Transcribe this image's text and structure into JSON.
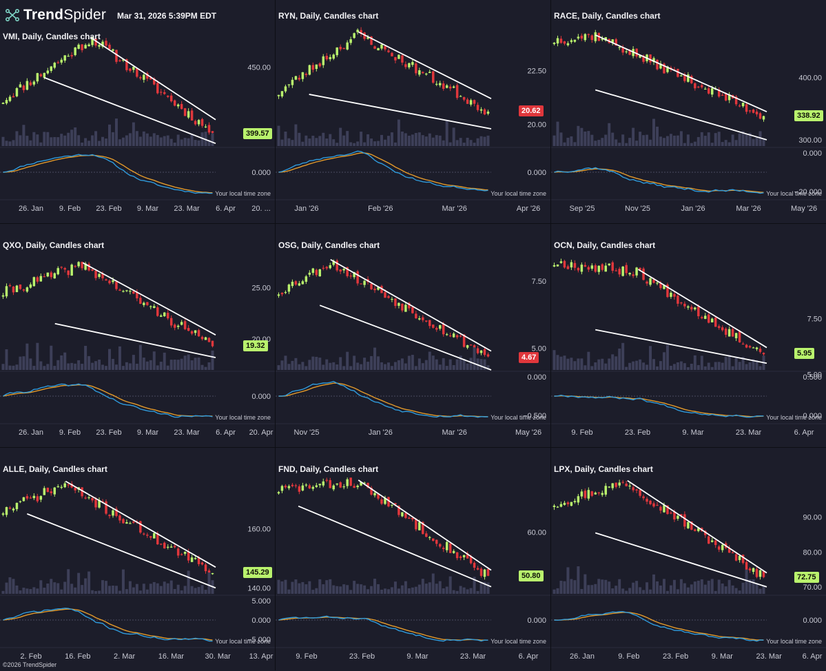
{
  "header": {
    "brand_bold": "Trend",
    "brand_light": "Spider",
    "timestamp": "Mar 31, 2026 5:39PM EDT",
    "copyright": "©2026 TrendSpider",
    "logo_icon": "trendspider-logo-icon"
  },
  "colors": {
    "background": "#1c1d2a",
    "bull": "#b9f26d",
    "bear": "#e0373c",
    "trendline": "#ffffff",
    "volume": "#3d3f58",
    "macd": "#2f9bdc",
    "signal": "#e39a2b",
    "badge_up": "#b9f26d",
    "badge_down": "#e0373c"
  },
  "time_zone_label": "Your local time zone",
  "chart_data": [
    {
      "type": "candlestick",
      "title": "VMI, Daily, Candles chart",
      "ticker": "VMI",
      "last_price": "399.57",
      "badge": "up",
      "price_ticks": [
        "450.00"
      ],
      "price_range": [
        390,
        480
      ],
      "date_ticks": [
        "26. Jan",
        "9. Feb",
        "23. Feb",
        "9. Mar",
        "23. Mar",
        "6. Apr",
        "20. ..."
      ],
      "osc_ticks": [
        "0.000"
      ],
      "trend": {
        "start": 425,
        "peak": 472,
        "end": 400,
        "peak_pos": 0.42
      },
      "upper_line": [
        [
          0.42,
          472
        ],
        [
          1.0,
          410
        ]
      ],
      "lower_line": [
        [
          0.2,
          442
        ],
        [
          1.0,
          392
        ]
      ],
      "seed": 11
    },
    {
      "type": "candlestick",
      "title": "RYN, Daily, Candles chart",
      "ticker": "RYN",
      "last_price": "20.62",
      "badge": "down",
      "price_ticks": [
        "22.50",
        "20.00"
      ],
      "price_range": [
        19.0,
        24.5
      ],
      "date_ticks": [
        "Jan '26",
        "Feb '26",
        "Mar '26",
        "Apr '26"
      ],
      "osc_ticks": [
        "0.000"
      ],
      "trend": {
        "start": 21.5,
        "peak": 24.2,
        "end": 20.6,
        "peak_pos": 0.38
      },
      "upper_line": [
        [
          0.38,
          24.3
        ],
        [
          1.0,
          21.2
        ]
      ],
      "lower_line": [
        [
          0.15,
          21.4
        ],
        [
          1.0,
          19.8
        ]
      ],
      "seed": 23
    },
    {
      "type": "candlestick",
      "title": "RACE, Daily, Candles chart",
      "ticker": "RACE",
      "last_price": "338.92",
      "badge": "up",
      "price_ticks": [
        "400.00",
        "300.00"
      ],
      "price_range": [
        290,
        480
      ],
      "date_ticks": [
        "Sep '25",
        "Nov '25",
        "Jan '26",
        "Mar '26",
        "May '26"
      ],
      "osc_ticks": [
        "0.000",
        "−20.000"
      ],
      "trend": {
        "start": 460,
        "peak": 468,
        "end": 338,
        "peak_pos": 0.2
      },
      "upper_line": [
        [
          0.2,
          468
        ],
        [
          1.0,
          345
        ]
      ],
      "lower_line": [
        [
          0.2,
          380
        ],
        [
          1.0,
          300
        ]
      ],
      "seed": 37
    },
    {
      "type": "candlestick",
      "title": "QXO, Daily, Candles chart",
      "ticker": "QXO",
      "last_price": "19.32",
      "badge": "up",
      "price_ticks": [
        "25.00",
        "20.00"
      ],
      "price_range": [
        17.0,
        28.5
      ],
      "date_ticks": [
        "26. Jan",
        "9. Feb",
        "23. Feb",
        "9. Mar",
        "23. Mar",
        "6. Apr",
        "20. Apr"
      ],
      "osc_ticks": [
        "0.000"
      ],
      "trend": {
        "start": 24.5,
        "peak": 27.2,
        "end": 19.3,
        "peak_pos": 0.38
      },
      "upper_line": [
        [
          0.38,
          27.4
        ],
        [
          1.0,
          20.4
        ]
      ],
      "lower_line": [
        [
          0.25,
          21.5
        ],
        [
          1.0,
          18.2
        ]
      ],
      "seed": 41
    },
    {
      "type": "candlestick",
      "title": "OSG, Daily, Candles chart",
      "ticker": "OSG",
      "last_price": "4.67",
      "badge": "down",
      "price_ticks": [
        "7.50",
        "5.00"
      ],
      "price_range": [
        4.2,
        8.6
      ],
      "date_ticks": [
        "Nov '25",
        "Jan '26",
        "Mar '26",
        "May '26"
      ],
      "osc_ticks": [
        "0.000",
        "−0.500"
      ],
      "trend": {
        "start": 7.1,
        "peak": 8.2,
        "end": 4.7,
        "peak_pos": 0.25
      },
      "upper_line": [
        [
          0.25,
          8.3
        ],
        [
          1.0,
          4.9
        ]
      ],
      "lower_line": [
        [
          0.2,
          6.6
        ],
        [
          1.0,
          4.2
        ]
      ],
      "seed": 53
    },
    {
      "type": "candlestick",
      "title": "OCN, Daily, Candles chart",
      "ticker": "OCN",
      "last_price": "5.95",
      "badge": "up",
      "price_ticks": [
        "7.50",
        "5.00"
      ],
      "price_range": [
        5.2,
        10.5
      ],
      "date_ticks": [
        "9. Feb",
        "23. Feb",
        "9. Mar",
        "23. Mar",
        "6. Apr"
      ],
      "osc_ticks": [
        "0.500",
        "0.000"
      ],
      "trend": {
        "start": 10.0,
        "peak": 9.6,
        "end": 5.9,
        "peak_pos": 0.4
      },
      "upper_line": [
        [
          0.4,
          9.7
        ],
        [
          1.0,
          6.2
        ]
      ],
      "lower_line": [
        [
          0.2,
          7.0
        ],
        [
          1.0,
          5.5
        ]
      ],
      "seed": 67
    },
    {
      "type": "candlestick",
      "title": "ALLE, Daily, Candles chart",
      "ticker": "ALLE",
      "last_price": "145.29",
      "badge": "up",
      "price_ticks": [
        "160.00",
        "140.00"
      ],
      "price_range": [
        138,
        178
      ],
      "date_ticks": [
        "2. Feb",
        "16. Feb",
        "2. Mar",
        "16. Mar",
        "30. Mar",
        "13. Apr"
      ],
      "osc_ticks": [
        "5.000",
        "0.000",
        "−5.000"
      ],
      "trend": {
        "start": 166,
        "peak": 175,
        "end": 145,
        "peak_pos": 0.3
      },
      "upper_line": [
        [
          0.3,
          176
        ],
        [
          1.0,
          147
        ]
      ],
      "lower_line": [
        [
          0.12,
          165
        ],
        [
          1.0,
          140
        ]
      ],
      "seed": 71
    },
    {
      "type": "candlestick",
      "title": "FND, Daily, Candles chart",
      "ticker": "FND",
      "last_price": "50.80",
      "badge": "up",
      "price_ticks": [
        "60.00"
      ],
      "price_range": [
        47,
        72
      ],
      "date_ticks": [
        "9. Feb",
        "23. Feb",
        "9. Mar",
        "23. Mar",
        "6. Apr"
      ],
      "osc_ticks": [
        "0.000"
      ],
      "trend": {
        "start": 69,
        "peak": 70.5,
        "end": 50.8,
        "peak_pos": 0.38
      },
      "upper_line": [
        [
          0.38,
          71
        ],
        [
          1.0,
          52
        ]
      ],
      "lower_line": [
        [
          0.1,
          65.5
        ],
        [
          1.0,
          48.5
        ]
      ],
      "seed": 83
    },
    {
      "type": "candlestick",
      "title": "LPX, Daily, Candles chart",
      "ticker": "LPX",
      "last_price": "72.75",
      "badge": "up",
      "price_ticks": [
        "90.00",
        "80.00",
        "70.00"
      ],
      "price_range": [
        68,
        102
      ],
      "date_ticks": [
        "26. Jan",
        "9. Feb",
        "23. Feb",
        "9. Mar",
        "23. Mar",
        "6. Apr"
      ],
      "osc_ticks": [
        "0.000"
      ],
      "trend": {
        "start": 94,
        "peak": 100,
        "end": 72.8,
        "peak_pos": 0.35
      },
      "upper_line": [
        [
          0.35,
          100.5
        ],
        [
          1.0,
          74
        ]
      ],
      "lower_line": [
        [
          0.2,
          85.5
        ],
        [
          1.0,
          70
        ]
      ],
      "seed": 97
    }
  ]
}
